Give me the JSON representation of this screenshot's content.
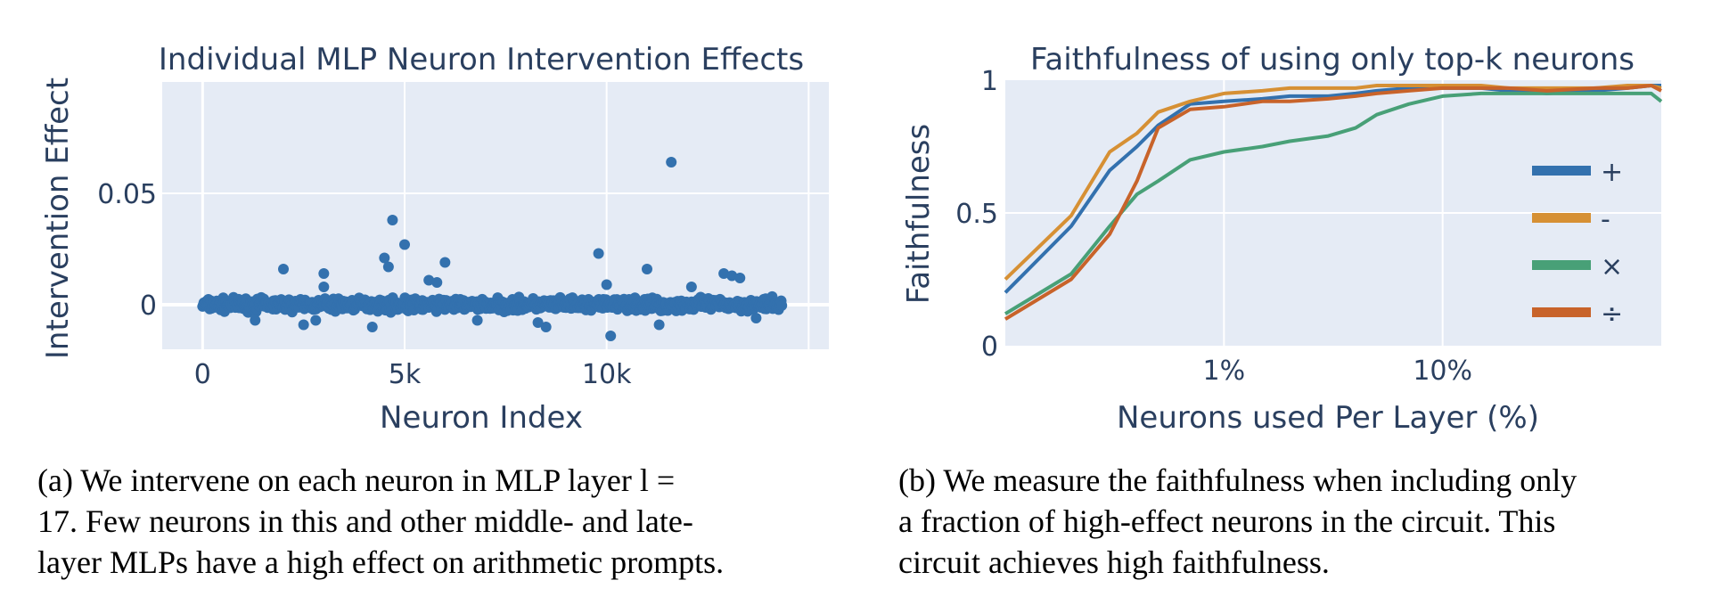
{
  "chart_data": [
    {
      "type": "scatter",
      "title": "Individual MLP Neuron Intervention Effects",
      "xlabel": "Neuron Index",
      "ylabel": "Intervention Effect",
      "xlim": [
        -1000,
        15500
      ],
      "ylim": [
        -0.02,
        0.1
      ],
      "xticks": [
        0,
        5000,
        10000,
        15000
      ],
      "xtick_labels": [
        "0",
        "5k",
        "10k",
        ""
      ],
      "yticks": [
        0,
        0.05
      ],
      "ytick_labels": [
        "0",
        "0.05"
      ],
      "grid": true,
      "marker_color": "#3371ae",
      "n_points": 14336,
      "bulk_range": [
        -0.004,
        0.004
      ],
      "outliers": [
        {
          "x": 11600,
          "y": 0.064
        },
        {
          "x": 4700,
          "y": 0.038
        },
        {
          "x": 5000,
          "y": 0.027
        },
        {
          "x": 4500,
          "y": 0.021
        },
        {
          "x": 4600,
          "y": 0.017
        },
        {
          "x": 9800,
          "y": 0.023
        },
        {
          "x": 6000,
          "y": 0.019
        },
        {
          "x": 2000,
          "y": 0.016
        },
        {
          "x": 3000,
          "y": 0.014
        },
        {
          "x": 11000,
          "y": 0.016
        },
        {
          "x": 12900,
          "y": 0.014
        },
        {
          "x": 13100,
          "y": 0.013
        },
        {
          "x": 13300,
          "y": 0.012
        },
        {
          "x": 5600,
          "y": 0.011
        },
        {
          "x": 5800,
          "y": 0.01
        },
        {
          "x": 3000,
          "y": 0.008
        },
        {
          "x": 10000,
          "y": 0.009
        },
        {
          "x": 12100,
          "y": 0.008
        },
        {
          "x": 10100,
          "y": -0.014
        },
        {
          "x": 8500,
          "y": -0.01
        },
        {
          "x": 4200,
          "y": -0.01
        },
        {
          "x": 8300,
          "y": -0.008
        },
        {
          "x": 6800,
          "y": -0.007
        },
        {
          "x": 1300,
          "y": -0.007
        },
        {
          "x": 2500,
          "y": -0.009
        },
        {
          "x": 2800,
          "y": -0.007
        },
        {
          "x": 11300,
          "y": -0.009
        },
        {
          "x": 13700,
          "y": -0.006
        }
      ]
    },
    {
      "type": "line",
      "title": "Faithfulness of using only top-k neurons",
      "xlabel": "Neurons used Per Layer (%)",
      "ylabel": "Faithfulness",
      "xscale": "log",
      "xlim": [
        0.1,
        100
      ],
      "ylim": [
        0,
        1
      ],
      "xticks": [
        1,
        10
      ],
      "xtick_labels": [
        "1%",
        "10%"
      ],
      "yticks": [
        0,
        0.5,
        1
      ],
      "ytick_labels": [
        "0",
        "0.5",
        "1"
      ],
      "grid": true,
      "legend_position": "right",
      "x": [
        0.1,
        0.2,
        0.3,
        0.4,
        0.5,
        0.7,
        1.0,
        1.5,
        2,
        3,
        4,
        5,
        7,
        10,
        15,
        20,
        30,
        50,
        70,
        90,
        100
      ],
      "series": [
        {
          "name": "+",
          "color": "#3371ae",
          "values": [
            0.2,
            0.45,
            0.66,
            0.75,
            0.83,
            0.91,
            0.92,
            0.93,
            0.94,
            0.94,
            0.95,
            0.96,
            0.97,
            0.97,
            0.97,
            0.96,
            0.95,
            0.96,
            0.97,
            0.98,
            0.98
          ]
        },
        {
          "name": "-",
          "color": "#d69034",
          "values": [
            0.25,
            0.49,
            0.73,
            0.8,
            0.88,
            0.92,
            0.95,
            0.96,
            0.97,
            0.97,
            0.97,
            0.98,
            0.98,
            0.98,
            0.98,
            0.97,
            0.97,
            0.97,
            0.98,
            0.98,
            0.97
          ]
        },
        {
          "name": "×",
          "color": "#48a077",
          "values": [
            0.12,
            0.27,
            0.45,
            0.57,
            0.62,
            0.7,
            0.73,
            0.75,
            0.77,
            0.79,
            0.82,
            0.87,
            0.91,
            0.94,
            0.95,
            0.95,
            0.95,
            0.95,
            0.95,
            0.95,
            0.92
          ]
        },
        {
          "name": "÷",
          "color": "#c8632a",
          "values": [
            0.1,
            0.25,
            0.42,
            0.62,
            0.82,
            0.89,
            0.9,
            0.92,
            0.92,
            0.93,
            0.94,
            0.95,
            0.96,
            0.97,
            0.97,
            0.97,
            0.96,
            0.97,
            0.97,
            0.98,
            0.96
          ]
        }
      ]
    }
  ],
  "captions": {
    "a": [
      "(a) We intervene on each neuron in MLP layer l =",
      "17.  Few neurons in this and other middle- and late-",
      "layer MLPs have a high effect on arithmetic prompts."
    ],
    "b": [
      "(b) We measure the faithfulness when including only",
      "a fraction of high-effect neurons in the circuit.  This",
      "circuit achieves high faithfulness."
    ]
  },
  "colors": {
    "plot_bg": "#e5ebf5",
    "grid": "#ffffff",
    "text": "#2a3f5f"
  }
}
